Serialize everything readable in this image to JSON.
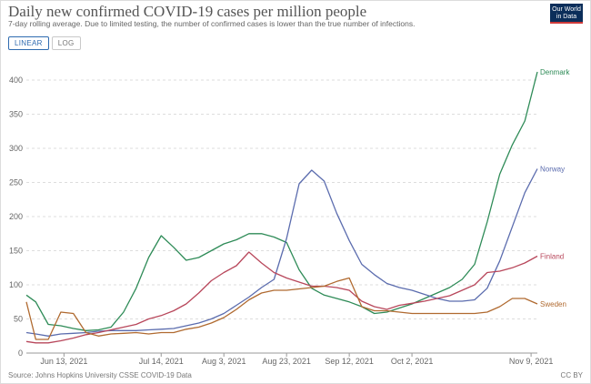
{
  "header": {
    "title": "Daily new confirmed COVID-19 cases per million people",
    "subtitle": "7-day rolling average. Due to limited testing, the number of confirmed cases is lower than the true number of infections."
  },
  "logo": {
    "line1": "Our World",
    "line2": "in Data"
  },
  "tabs": [
    {
      "label": "LINEAR",
      "active": true
    },
    {
      "label": "LOG",
      "active": false
    }
  ],
  "footer": {
    "source": "Source: Johns Hopkins University CSSE COVID-19 Data",
    "license": "CC BY"
  },
  "chart_data": {
    "type": "line",
    "x_dates": [
      "2021-06-01",
      "2021-06-04",
      "2021-06-08",
      "2021-06-12",
      "2021-06-16",
      "2021-06-20",
      "2021-06-24",
      "2021-06-28",
      "2021-07-02",
      "2021-07-06",
      "2021-07-10",
      "2021-07-14",
      "2021-07-18",
      "2021-07-22",
      "2021-07-26",
      "2021-07-30",
      "2021-08-03",
      "2021-08-07",
      "2021-08-11",
      "2021-08-15",
      "2021-08-19",
      "2021-08-23",
      "2021-08-27",
      "2021-08-31",
      "2021-09-04",
      "2021-09-08",
      "2021-09-12",
      "2021-09-16",
      "2021-09-20",
      "2021-09-24",
      "2021-09-28",
      "2021-10-02",
      "2021-10-06",
      "2021-10-10",
      "2021-10-14",
      "2021-10-18",
      "2021-10-22",
      "2021-10-26",
      "2021-10-30",
      "2021-11-03",
      "2021-11-07",
      "2021-11-11"
    ],
    "series": [
      {
        "name": "Denmark",
        "color": "#2e8b57",
        "values": [
          85,
          75,
          42,
          40,
          36,
          33,
          34,
          38,
          60,
          95,
          140,
          172,
          155,
          136,
          140,
          150,
          160,
          166,
          175,
          175,
          170,
          162,
          122,
          95,
          85,
          80,
          75,
          68,
          58,
          60,
          66,
          72,
          80,
          88,
          96,
          108,
          130,
          192,
          262,
          305,
          340,
          412
        ]
      },
      {
        "name": "Norway",
        "color": "#5b6cae",
        "values": [
          30,
          28,
          25,
          28,
          29,
          30,
          32,
          33,
          33,
          33,
          34,
          35,
          36,
          40,
          44,
          50,
          58,
          70,
          82,
          96,
          108,
          168,
          248,
          268,
          252,
          205,
          165,
          130,
          115,
          102,
          96,
          92,
          86,
          80,
          76,
          76,
          78,
          95,
          135,
          185,
          235,
          270
        ]
      },
      {
        "name": "Finland",
        "color": "#b8475b",
        "values": [
          17,
          15,
          15,
          18,
          22,
          27,
          30,
          34,
          38,
          42,
          50,
          55,
          62,
          72,
          88,
          106,
          118,
          128,
          148,
          132,
          118,
          110,
          104,
          98,
          98,
          96,
          92,
          76,
          68,
          64,
          70,
          73,
          76,
          80,
          84,
          92,
          100,
          118,
          120,
          125,
          132,
          142
        ]
      },
      {
        "name": "Sweden",
        "color": "#b06a30",
        "values": [
          75,
          20,
          20,
          60,
          58,
          30,
          25,
          28,
          29,
          30,
          28,
          30,
          30,
          35,
          38,
          44,
          52,
          64,
          78,
          88,
          92,
          92,
          94,
          96,
          98,
          105,
          110,
          68,
          62,
          62,
          60,
          58,
          58,
          58,
          58,
          58,
          58,
          60,
          68,
          80,
          80,
          72
        ]
      }
    ],
    "x_ticks": [
      {
        "date": "2021-06-13",
        "label": "Jun 13, 2021"
      },
      {
        "date": "2021-07-14",
        "label": "Jul 14, 2021"
      },
      {
        "date": "2021-08-03",
        "label": "Aug 3, 2021"
      },
      {
        "date": "2021-08-23",
        "label": "Aug 23, 2021"
      },
      {
        "date": "2021-09-12",
        "label": "Sep 12, 2021"
      },
      {
        "date": "2021-10-02",
        "label": "Oct 2, 2021"
      },
      {
        "date": "2021-11-09",
        "label": "Nov 9, 2021"
      }
    ],
    "y_ticks": [
      0,
      50,
      100,
      150,
      200,
      250,
      300,
      350,
      400
    ],
    "ylim": [
      0,
      420
    ],
    "xlim": [
      "2021-06-01",
      "2021-11-11"
    ],
    "grid": "horizontal-dotted",
    "legend": "inline-right"
  }
}
